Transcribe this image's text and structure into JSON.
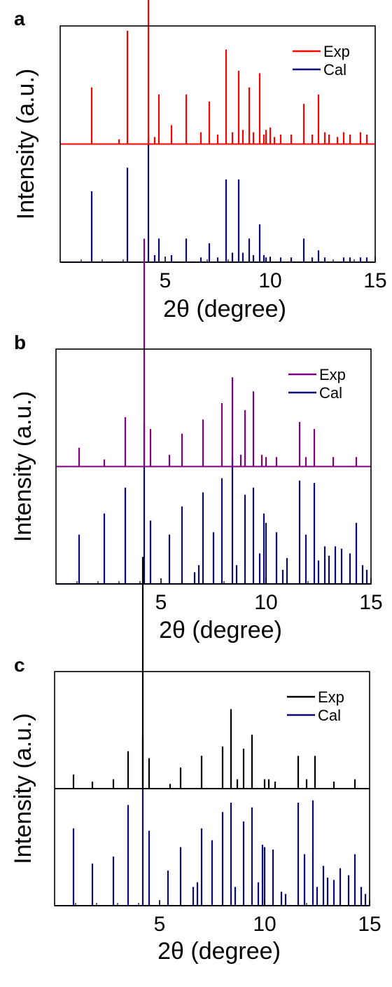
{
  "chart_data": [
    {
      "type": "line",
      "panel_label": "a",
      "xlabel": "2θ (degree)",
      "ylabel": "Intensity (a.u.)",
      "xlim": [
        0,
        15
      ],
      "xticks": [
        5,
        10,
        15
      ],
      "legend": {
        "placement": "top-right",
        "entries": [
          "Exp",
          "Cal"
        ]
      },
      "series": [
        {
          "name": "Exp",
          "color": "#ff0000",
          "baseline": 0.5,
          "peaks": [
            [
              1.5,
              0.24
            ],
            [
              2.8,
              0.02
            ],
            [
              3.2,
              0.48
            ],
            [
              4.2,
              0.73
            ],
            [
              4.5,
              0.03
            ],
            [
              4.7,
              0.21
            ],
            [
              5.3,
              0.08
            ],
            [
              6.0,
              0.21
            ],
            [
              6.7,
              0.05
            ],
            [
              7.1,
              0.18
            ],
            [
              7.5,
              0.04
            ],
            [
              7.9,
              0.4
            ],
            [
              8.2,
              0.05
            ],
            [
              8.5,
              0.31
            ],
            [
              8.7,
              0.06
            ],
            [
              9.0,
              0.24
            ],
            [
              9.2,
              0.05
            ],
            [
              9.5,
              0.3
            ],
            [
              9.7,
              0.04
            ],
            [
              9.8,
              0.06
            ],
            [
              10.0,
              0.07
            ],
            [
              10.2,
              0.03
            ],
            [
              10.5,
              0.04
            ],
            [
              11.0,
              0.04
            ],
            [
              11.6,
              0.17
            ],
            [
              12.0,
              0.04
            ],
            [
              12.3,
              0.21
            ],
            [
              12.6,
              0.05
            ],
            [
              12.8,
              0.04
            ],
            [
              13.2,
              0.03
            ],
            [
              13.5,
              0.05
            ],
            [
              13.8,
              0.04
            ],
            [
              14.3,
              0.05
            ],
            [
              14.6,
              0.04
            ]
          ]
        },
        {
          "name": "Cal",
          "color": "#0a0a7a",
          "baseline": 0.0,
          "peaks": [
            [
              1.5,
              0.3
            ],
            [
              3.2,
              0.4
            ],
            [
              4.2,
              0.52
            ],
            [
              4.5,
              0.03
            ],
            [
              4.7,
              0.1
            ],
            [
              5.3,
              0.03
            ],
            [
              6.0,
              0.1
            ],
            [
              6.7,
              0.02
            ],
            [
              7.1,
              0.08
            ],
            [
              7.5,
              0.02
            ],
            [
              7.9,
              0.35
            ],
            [
              8.2,
              0.04
            ],
            [
              8.5,
              0.35
            ],
            [
              8.7,
              0.04
            ],
            [
              9.0,
              0.1
            ],
            [
              9.2,
              0.03
            ],
            [
              9.5,
              0.16
            ],
            [
              9.7,
              0.03
            ],
            [
              9.8,
              0.02
            ],
            [
              10.0,
              0.02
            ],
            [
              10.5,
              0.02
            ],
            [
              11.0,
              0.02
            ],
            [
              11.6,
              0.1
            ],
            [
              12.0,
              0.02
            ],
            [
              12.3,
              0.05
            ],
            [
              12.6,
              0.02
            ],
            [
              13.5,
              0.02
            ],
            [
              13.8,
              0.02
            ],
            [
              14.3,
              0.02
            ],
            [
              14.6,
              0.02
            ]
          ]
        }
      ]
    },
    {
      "type": "line",
      "panel_label": "b",
      "xlabel": "2θ (degree)",
      "ylabel": "Intensity (a.u.)",
      "xlim": [
        0,
        15
      ],
      "xticks": [
        5,
        10,
        15
      ],
      "legend": {
        "placement": "top-right",
        "entries": [
          "Exp",
          "Cal"
        ]
      },
      "series": [
        {
          "name": "Exp",
          "color": "#800080",
          "baseline": 0.5,
          "peaks": [
            [
              1.1,
              0.08
            ],
            [
              2.3,
              0.03
            ],
            [
              3.3,
              0.21
            ],
            [
              4.2,
              0.97
            ],
            [
              4.5,
              0.16
            ],
            [
              5.4,
              0.05
            ],
            [
              6.0,
              0.14
            ],
            [
              7.0,
              0.2
            ],
            [
              7.9,
              0.27
            ],
            [
              8.4,
              0.38
            ],
            [
              8.8,
              0.05
            ],
            [
              9.0,
              0.24
            ],
            [
              9.4,
              0.32
            ],
            [
              9.8,
              0.05
            ],
            [
              10.0,
              0.04
            ],
            [
              10.5,
              0.04
            ],
            [
              11.6,
              0.19
            ],
            [
              11.9,
              0.04
            ],
            [
              12.3,
              0.16
            ],
            [
              13.2,
              0.04
            ],
            [
              14.3,
              0.04
            ]
          ]
        },
        {
          "name": "Cal",
          "color": "#0a0a7a",
          "baseline": 0.0,
          "peaks": [
            [
              1.1,
              0.21
            ],
            [
              2.3,
              0.3
            ],
            [
              3.3,
              0.41
            ],
            [
              4.2,
              0.69
            ],
            [
              4.5,
              0.27
            ],
            [
              5.4,
              0.21
            ],
            [
              6.0,
              0.33
            ],
            [
              6.6,
              0.05
            ],
            [
              6.8,
              0.08
            ],
            [
              7.0,
              0.39
            ],
            [
              7.5,
              0.22
            ],
            [
              7.9,
              0.45
            ],
            [
              8.4,
              0.54
            ],
            [
              8.6,
              0.08
            ],
            [
              9.0,
              0.38
            ],
            [
              9.4,
              0.41
            ],
            [
              9.7,
              0.13
            ],
            [
              9.9,
              0.3
            ],
            [
              10.0,
              0.26
            ],
            [
              10.5,
              0.22
            ],
            [
              10.8,
              0.06
            ],
            [
              11.0,
              0.11
            ],
            [
              11.6,
              0.44
            ],
            [
              11.9,
              0.21
            ],
            [
              12.3,
              0.43
            ],
            [
              12.5,
              0.1
            ],
            [
              12.8,
              0.16
            ],
            [
              13.0,
              0.12
            ],
            [
              13.3,
              0.16
            ],
            [
              13.6,
              0.15
            ],
            [
              14.0,
              0.13
            ],
            [
              14.3,
              0.26
            ],
            [
              14.6,
              0.08
            ],
            [
              14.8,
              0.06
            ]
          ]
        }
      ]
    },
    {
      "type": "line",
      "panel_label": "c",
      "xlabel": "2θ (degree)",
      "ylabel": "Intensity (a.u.)",
      "xlim": [
        0,
        15
      ],
      "xticks": [
        5,
        10,
        15
      ],
      "legend": {
        "placement": "top-right",
        "entries": [
          "Exp",
          "Cal"
        ]
      },
      "series": [
        {
          "name": "Exp",
          "color": "#000000",
          "baseline": 0.5,
          "peaks": [
            [
              0.9,
              0.06
            ],
            [
              1.8,
              0.03
            ],
            [
              2.8,
              0.04
            ],
            [
              3.5,
              0.16
            ],
            [
              4.2,
              0.99
            ],
            [
              4.5,
              0.13
            ],
            [
              5.5,
              0.02
            ],
            [
              6.0,
              0.09
            ],
            [
              7.0,
              0.14
            ],
            [
              8.0,
              0.18
            ],
            [
              8.4,
              0.34
            ],
            [
              8.7,
              0.04
            ],
            [
              9.0,
              0.17
            ],
            [
              9.4,
              0.23
            ],
            [
              10.0,
              0.04
            ],
            [
              10.2,
              0.04
            ],
            [
              10.5,
              0.03
            ],
            [
              11.6,
              0.14
            ],
            [
              12.0,
              0.04
            ],
            [
              12.4,
              0.14
            ],
            [
              13.3,
              0.03
            ],
            [
              14.3,
              0.04
            ]
          ]
        },
        {
          "name": "Cal",
          "color": "#0a0a7a",
          "baseline": 0.0,
          "peaks": [
            [
              0.9,
              0.33
            ],
            [
              1.8,
              0.18
            ],
            [
              2.8,
              0.21
            ],
            [
              3.5,
              0.43
            ],
            [
              4.2,
              0.72
            ],
            [
              4.5,
              0.32
            ],
            [
              5.4,
              0.15
            ],
            [
              6.0,
              0.25
            ],
            [
              6.6,
              0.08
            ],
            [
              6.8,
              0.1
            ],
            [
              7.0,
              0.33
            ],
            [
              7.5,
              0.28
            ],
            [
              8.0,
              0.4
            ],
            [
              8.4,
              0.44
            ],
            [
              8.6,
              0.08
            ],
            [
              9.0,
              0.36
            ],
            [
              9.4,
              0.42
            ],
            [
              9.7,
              0.1
            ],
            [
              9.9,
              0.26
            ],
            [
              10.0,
              0.25
            ],
            [
              10.4,
              0.24
            ],
            [
              10.8,
              0.06
            ],
            [
              11.0,
              0.05
            ],
            [
              11.6,
              0.44
            ],
            [
              11.9,
              0.22
            ],
            [
              12.3,
              0.45
            ],
            [
              12.5,
              0.08
            ],
            [
              12.8,
              0.17
            ],
            [
              13.0,
              0.12
            ],
            [
              13.3,
              0.11
            ],
            [
              13.6,
              0.16
            ],
            [
              14.0,
              0.13
            ],
            [
              14.3,
              0.22
            ],
            [
              14.6,
              0.08
            ],
            [
              14.8,
              0.05
            ]
          ]
        }
      ]
    }
  ]
}
